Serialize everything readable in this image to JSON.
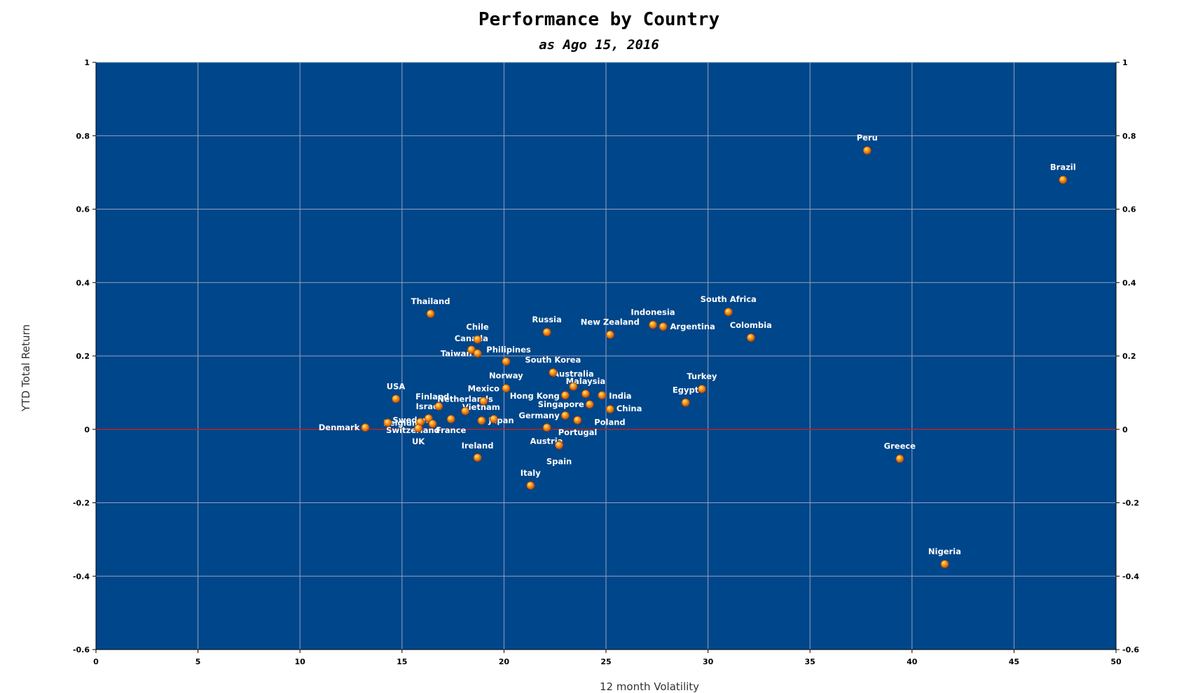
{
  "chart_data": {
    "type": "scatter",
    "title": "Performance by Country",
    "subtitle": "as Ago 15, 2016",
    "xlabel": "12 month Volatility",
    "ylabel": "YTD Total Return",
    "xlim": [
      0,
      50
    ],
    "ylim": [
      -0.6,
      1
    ],
    "x_ticks": [
      0,
      5,
      10,
      15,
      20,
      25,
      30,
      35,
      40,
      45,
      50
    ],
    "y_ticks": [
      -0.6,
      -0.4,
      -0.2,
      0,
      0.2,
      0.4,
      0.6,
      0.8,
      1
    ],
    "y_tick_labels": [
      "-0.6",
      "-0.4",
      "-0.2",
      "0",
      "0.2",
      "0.4",
      "0.6",
      "0.8",
      "1"
    ],
    "grid": true,
    "secondary_y_axis": true,
    "reference_line_y": 0,
    "colors": {
      "plot_background": "#00468a",
      "grid": "#8fa3c0",
      "zero_line": "#b0262b",
      "marker": "#f07d12",
      "marker_highlight": "#ffd45a",
      "label_text": "#ffffff"
    },
    "points": [
      {
        "label": "Peru",
        "x": 37.8,
        "y": 0.76
      },
      {
        "label": "Brazil",
        "x": 47.4,
        "y": 0.68
      },
      {
        "label": "Thailand",
        "x": 16.4,
        "y": 0.315
      },
      {
        "label": "South Africa",
        "x": 31.0,
        "y": 0.32
      },
      {
        "label": "Indonesia",
        "x": 27.3,
        "y": 0.285
      },
      {
        "label": "Argentina",
        "x": 27.8,
        "y": 0.28
      },
      {
        "label": "New Zealand",
        "x": 25.2,
        "y": 0.258
      },
      {
        "label": "Colombia",
        "x": 32.1,
        "y": 0.25
      },
      {
        "label": "Russia",
        "x": 22.1,
        "y": 0.265
      },
      {
        "label": "Chile",
        "x": 18.7,
        "y": 0.245
      },
      {
        "label": "Canada",
        "x": 18.4,
        "y": 0.217
      },
      {
        "label": "Taiwan",
        "x": 18.7,
        "y": 0.207
      },
      {
        "label": "Philipines",
        "x": 20.1,
        "y": 0.185
      },
      {
        "label": "South Korea",
        "x": 22.4,
        "y": 0.155
      },
      {
        "label": "Australia",
        "x": 23.4,
        "y": 0.117
      },
      {
        "label": "Norway",
        "x": 20.1,
        "y": 0.112
      },
      {
        "label": "Turkey",
        "x": 29.7,
        "y": 0.11
      },
      {
        "label": "Malaysia",
        "x": 24.0,
        "y": 0.097
      },
      {
        "label": "Hong Kong",
        "x": 23.0,
        "y": 0.093
      },
      {
        "label": "India",
        "x": 24.8,
        "y": 0.093
      },
      {
        "label": "USA",
        "x": 14.7,
        "y": 0.083
      },
      {
        "label": "Mexico",
        "x": 19.0,
        "y": 0.077
      },
      {
        "label": "Egypt",
        "x": 28.9,
        "y": 0.073
      },
      {
        "label": "Singapore",
        "x": 24.2,
        "y": 0.068
      },
      {
        "label": "China",
        "x": 25.2,
        "y": 0.055
      },
      {
        "label": "Finland",
        "x": 16.8,
        "y": 0.063
      },
      {
        "label": "Netherlands",
        "x": 18.1,
        "y": 0.05
      },
      {
        "label": "Vietnam",
        "x": 19.5,
        "y": 0.028
      },
      {
        "label": "Israel",
        "x": 16.3,
        "y": 0.03
      },
      {
        "label": "Germany",
        "x": 23.0,
        "y": 0.038
      },
      {
        "label": "Japan",
        "x": 18.9,
        "y": 0.024
      },
      {
        "label": "Poland",
        "x": 23.6,
        "y": 0.025
      },
      {
        "label": "Sweden",
        "x": 15.9,
        "y": 0.02
      },
      {
        "label": "Belgium",
        "x": 14.3,
        "y": 0.018
      },
      {
        "label": "France",
        "x": 17.4,
        "y": 0.028
      },
      {
        "label": "Denmark",
        "x": 13.2,
        "y": 0.005
      },
      {
        "label": "UK",
        "x": 15.8,
        "y": 0.003
      },
      {
        "label": "Switzerland",
        "x": 16.5,
        "y": 0.015
      },
      {
        "label": "Portugal",
        "x": 22.1,
        "y": 0.005
      },
      {
        "label": "Austria",
        "x": 22.7,
        "y": -0.042
      },
      {
        "label": "Spain",
        "x": 22.7,
        "y": -0.043
      },
      {
        "label": "Ireland",
        "x": 18.7,
        "y": -0.077
      },
      {
        "label": "Greece",
        "x": 39.4,
        "y": -0.08
      },
      {
        "label": "Italy",
        "x": 21.3,
        "y": -0.153
      },
      {
        "label": "Nigeria",
        "x": 41.6,
        "y": -0.367
      }
    ]
  }
}
